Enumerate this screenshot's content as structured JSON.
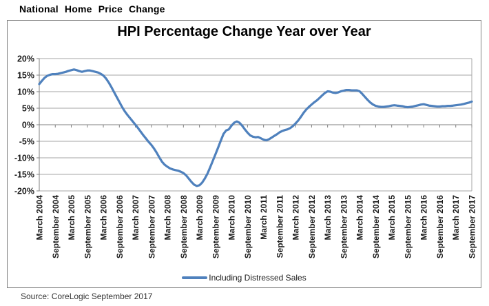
{
  "page": {
    "header": "National Home Price Change",
    "source": "Source: CoreLogic September 2017"
  },
  "chart_data": {
    "type": "line",
    "title": "HPI Percentage Change Year over Year",
    "xlabel": "",
    "ylabel": "",
    "ylim": [
      -20,
      20
    ],
    "y_step": 5,
    "y_tick_labels": [
      "20%",
      "15%",
      "10%",
      "5%",
      "0%",
      "-5%",
      "-10%",
      "-15%",
      "-20%"
    ],
    "x_tick_labels": [
      "March 2004",
      "September 2004",
      "March 2005",
      "September 2005",
      "March 2006",
      "September 2006",
      "March 2007",
      "September 2007",
      "March 2008",
      "September 2008",
      "March 2009",
      "September 2009",
      "March 2010",
      "September 2010",
      "March 2011",
      "September 2011",
      "March 2012",
      "September 2012",
      "March 2013",
      "September 2013",
      "March 2014",
      "September 2014",
      "March 2015",
      "September 2015",
      "March 2016",
      "September 2016",
      "March 2017",
      "September 2017"
    ],
    "x_tick_interval_months": 6,
    "frequency": "monthly",
    "x_start": "March 2004",
    "x_end": "September 2017",
    "grid": true,
    "legend_position": "bottom",
    "series": [
      {
        "name": "Including Distressed Sales",
        "color": "#4F81BD",
        "values": [
          12.3,
          13.3,
          14.2,
          14.8,
          15.1,
          15.3,
          15.3,
          15.4,
          15.6,
          15.8,
          16.0,
          16.3,
          16.5,
          16.7,
          16.5,
          16.2,
          16.0,
          16.2,
          16.4,
          16.4,
          16.2,
          16.0,
          15.8,
          15.4,
          14.9,
          14.0,
          12.8,
          11.4,
          9.9,
          8.4,
          6.9,
          5.4,
          4.1,
          3.0,
          2.0,
          1.0,
          0.0,
          -1.0,
          -2.1,
          -3.2,
          -4.2,
          -5.2,
          -6.1,
          -7.2,
          -8.5,
          -9.9,
          -11.2,
          -12.1,
          -12.7,
          -13.2,
          -13.5,
          -13.7,
          -13.9,
          -14.2,
          -14.6,
          -15.3,
          -16.3,
          -17.3,
          -18.1,
          -18.5,
          -18.3,
          -17.5,
          -16.3,
          -14.8,
          -12.9,
          -10.9,
          -8.9,
          -6.9,
          -4.8,
          -2.8,
          -1.7,
          -1.4,
          -0.3,
          0.6,
          1.0,
          0.6,
          -0.3,
          -1.4,
          -2.4,
          -3.2,
          -3.6,
          -3.8,
          -3.7,
          -4.1,
          -4.5,
          -4.7,
          -4.4,
          -3.9,
          -3.4,
          -2.9,
          -2.3,
          -1.9,
          -1.6,
          -1.4,
          -1.0,
          -0.4,
          0.4,
          1.3,
          2.4,
          3.6,
          4.6,
          5.4,
          6.1,
          6.8,
          7.4,
          8.1,
          8.9,
          9.6,
          10.1,
          10.0,
          9.7,
          9.6,
          9.8,
          10.1,
          10.3,
          10.5,
          10.5,
          10.4,
          10.4,
          10.4,
          10.1,
          9.3,
          8.4,
          7.5,
          6.7,
          6.1,
          5.7,
          5.5,
          5.4,
          5.4,
          5.5,
          5.6,
          5.8,
          5.9,
          5.8,
          5.7,
          5.6,
          5.4,
          5.3,
          5.4,
          5.5,
          5.7,
          5.9,
          6.1,
          6.2,
          6.0,
          5.8,
          5.7,
          5.6,
          5.5,
          5.5,
          5.6,
          5.6,
          5.7,
          5.7,
          5.8,
          5.9,
          6.0,
          6.1,
          6.3,
          6.5,
          6.7,
          7.0
        ]
      }
    ],
    "colors": {
      "line": "#4F81BD",
      "grid": "#A6A6A6",
      "axis": "#808080",
      "text": "#1a1a1a"
    }
  }
}
